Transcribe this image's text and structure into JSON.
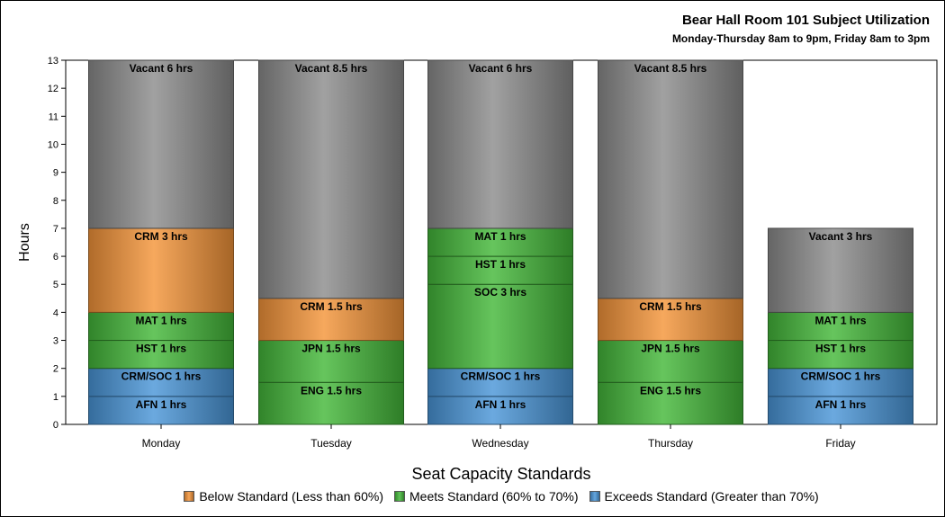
{
  "title": "Bear Hall Room 101 Subject Utilization",
  "subtitle": "Monday-Thursday 8am to 9pm, Friday 8am to 3pm",
  "colors": {
    "below": "#f4953a",
    "meets": "#44b83a",
    "exceeds": "#4a96d8",
    "vacant": "#8c8c8c"
  },
  "legend": {
    "title": "Seat Capacity Standards",
    "items": [
      {
        "key": "below",
        "label": "Below Standard (Less than 60%)"
      },
      {
        "key": "meets",
        "label": "Meets Standard (60% to 70%)"
      },
      {
        "key": "exceeds",
        "label": "Exceeds Standard (Greater than 70%)"
      }
    ]
  },
  "chart_data": {
    "type": "bar",
    "stacked": true,
    "title": "Bear Hall Room 101 Subject Utilization",
    "subtitle": "Monday-Thursday 8am to 9pm, Friday 8am to 3pm",
    "ylabel": "Hours",
    "xlabel": "",
    "ylim": [
      0,
      13
    ],
    "yticks": [
      0,
      1,
      2,
      3,
      4,
      5,
      6,
      7,
      8,
      9,
      10,
      11,
      12,
      13
    ],
    "categories": [
      "Monday",
      "Tuesday",
      "Wednesday",
      "Thursday",
      "Friday"
    ],
    "bars": [
      {
        "category": "Monday",
        "segments": [
          {
            "label": "AFN 1 hrs",
            "value": 1,
            "standard": "exceeds"
          },
          {
            "label": "CRM/SOC 1 hrs",
            "value": 1,
            "standard": "exceeds"
          },
          {
            "label": "HST 1 hrs",
            "value": 1,
            "standard": "meets"
          },
          {
            "label": "MAT 1 hrs",
            "value": 1,
            "standard": "meets"
          },
          {
            "label": "CRM 3 hrs",
            "value": 3,
            "standard": "below"
          },
          {
            "label": "Vacant 6 hrs",
            "value": 6,
            "standard": "vacant"
          }
        ]
      },
      {
        "category": "Tuesday",
        "segments": [
          {
            "label": "ENG 1.5 hrs",
            "value": 1.5,
            "standard": "meets"
          },
          {
            "label": "JPN 1.5 hrs",
            "value": 1.5,
            "standard": "meets"
          },
          {
            "label": "CRM 1.5 hrs",
            "value": 1.5,
            "standard": "below"
          },
          {
            "label": "Vacant 8.5 hrs",
            "value": 8.5,
            "standard": "vacant"
          }
        ]
      },
      {
        "category": "Wednesday",
        "segments": [
          {
            "label": "AFN 1 hrs",
            "value": 1,
            "standard": "exceeds"
          },
          {
            "label": "CRM/SOC 1 hrs",
            "value": 1,
            "standard": "exceeds"
          },
          {
            "label": "SOC 3 hrs",
            "value": 3,
            "standard": "meets"
          },
          {
            "label": "HST 1 hrs",
            "value": 1,
            "standard": "meets"
          },
          {
            "label": "MAT 1 hrs",
            "value": 1,
            "standard": "meets"
          },
          {
            "label": "Vacant 6 hrs",
            "value": 6,
            "standard": "vacant"
          }
        ]
      },
      {
        "category": "Thursday",
        "segments": [
          {
            "label": "ENG 1.5 hrs",
            "value": 1.5,
            "standard": "meets"
          },
          {
            "label": "JPN 1.5 hrs",
            "value": 1.5,
            "standard": "meets"
          },
          {
            "label": "CRM 1.5 hrs",
            "value": 1.5,
            "standard": "below"
          },
          {
            "label": "Vacant 8.5 hrs",
            "value": 8.5,
            "standard": "vacant"
          }
        ]
      },
      {
        "category": "Friday",
        "segments": [
          {
            "label": "AFN 1 hrs",
            "value": 1,
            "standard": "exceeds"
          },
          {
            "label": "CRM/SOC 1 hrs",
            "value": 1,
            "standard": "exceeds"
          },
          {
            "label": "HST 1 hrs",
            "value": 1,
            "standard": "meets"
          },
          {
            "label": "MAT 1 hrs",
            "value": 1,
            "standard": "meets"
          },
          {
            "label": "Vacant 3 hrs",
            "value": 3,
            "standard": "vacant"
          }
        ]
      }
    ],
    "grid": false,
    "legend_position": "bottom-center"
  }
}
